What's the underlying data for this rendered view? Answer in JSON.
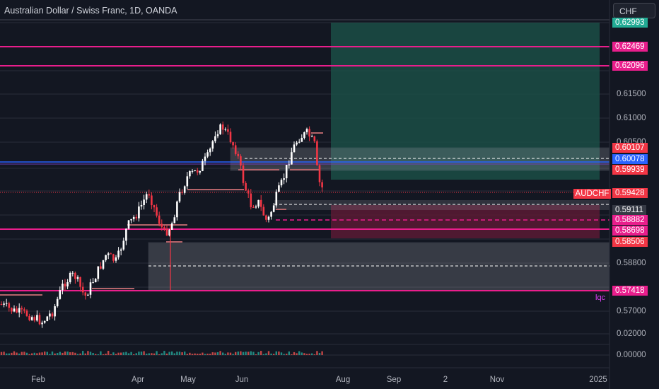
{
  "header": {
    "title": "Australian Dollar / Swiss Franc, 1D, OANDA"
  },
  "currency": "CHF",
  "symbol_tag": "AUDCHF",
  "price_axis": {
    "grid_labels": [
      "0.61500",
      "0.61000",
      "0.60500",
      "0.58800",
      "0.57000",
      "0.02000",
      "0.00000"
    ],
    "price_tags": [
      {
        "id": "t62993",
        "text": "0.62993",
        "bg": "#22ab94"
      },
      {
        "id": "t62469",
        "text": "0.62469",
        "bg": "#e91e8c"
      },
      {
        "id": "t62096",
        "text": "0.62096",
        "bg": "#e91e8c"
      },
      {
        "id": "t60107",
        "text": "0.60107",
        "bg": "#f23645"
      },
      {
        "id": "t60078",
        "text": "0.60078",
        "bg": "#2962ff"
      },
      {
        "id": "t59939",
        "text": "0.59939",
        "bg": "#f23645"
      },
      {
        "id": "t59428",
        "text": "0.59428",
        "bg": "#f23645"
      },
      {
        "id": "t59111",
        "text": "0.59111",
        "bg": "#363a45"
      },
      {
        "id": "t58882",
        "text": "0.58882",
        "bg": "#e91e8c"
      },
      {
        "id": "t58698",
        "text": "0.58698",
        "bg": "#e91e8c"
      },
      {
        "id": "t58506",
        "text": "0.58506",
        "bg": "#f23645"
      },
      {
        "id": "t57418",
        "text": "0.57418",
        "bg": "#e91e8c"
      }
    ]
  },
  "time_axis": [
    "Feb",
    "Apr",
    "May",
    "Jun",
    "Aug",
    "Sep",
    "2",
    "Nov",
    "2025"
  ],
  "annotations": {
    "lqc": "lqc"
  },
  "colors": {
    "up": "#ffffff",
    "down": "#f23645",
    "magenta": "#e91e8c",
    "blue": "#2962ff",
    "target": "#1b4d45",
    "stop": "#5a1a34"
  },
  "chart_data": {
    "type": "candlestick",
    "title": "Australian Dollar / Swiss Franc, 1D, OANDA",
    "currency": "CHF",
    "last_price": 0.59428,
    "horizontal_levels": [
      0.62469,
      0.62096,
      0.60078,
      0.58698,
      0.57418
    ],
    "y_ticks": [
      0.615,
      0.61,
      0.605,
      0.588,
      0.57
    ],
    "x_ticks": [
      "Feb",
      "Apr",
      "May",
      "Jun",
      "Aug",
      "Sep",
      "2",
      "Nov",
      "2025"
    ]
  }
}
